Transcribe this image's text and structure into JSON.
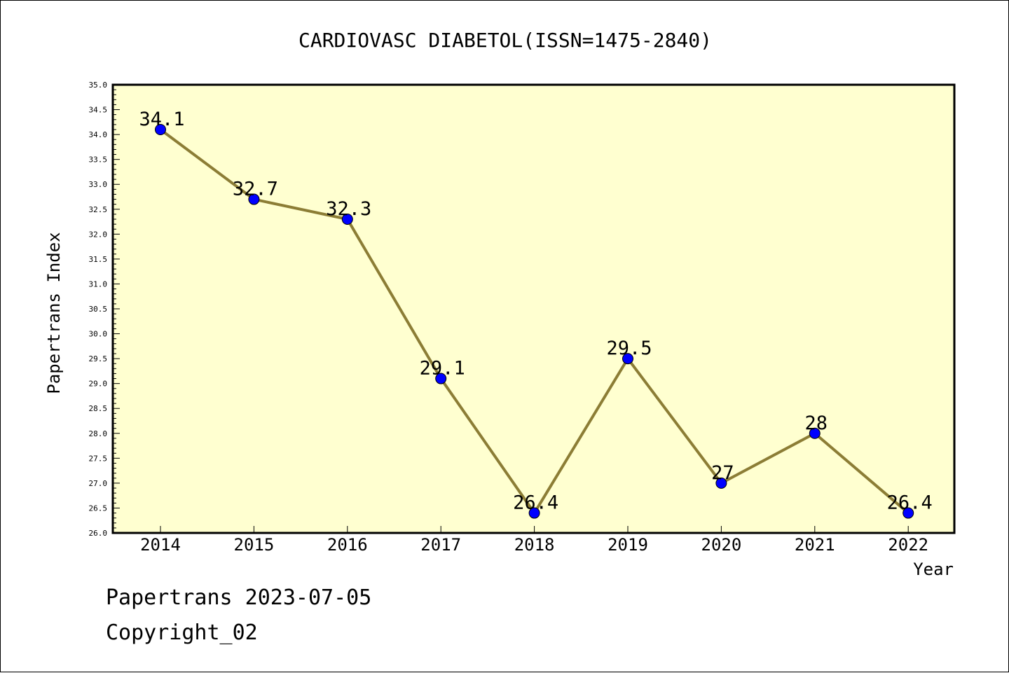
{
  "chart_data": {
    "type": "line",
    "title": "CARDIOVASC DIABETOL(ISSN=1475-2840)",
    "xlabel": "Year",
    "ylabel": "Papertrans Index",
    "categories": [
      "2014",
      "2015",
      "2016",
      "2017",
      "2018",
      "2019",
      "2020",
      "2021",
      "2022"
    ],
    "series": [
      {
        "values": [
          34.1,
          32.7,
          32.3,
          29.1,
          26.4,
          29.5,
          27,
          28,
          26.4
        ],
        "labels": [
          "34.1",
          "32.7",
          "32.3",
          "29.1",
          "26.4",
          "29.5",
          "27",
          "28",
          "26.4"
        ]
      }
    ],
    "ylim": [
      26.0,
      35.0
    ],
    "yticks": [
      "26.0",
      "26.5",
      "27.0",
      "27.5",
      "28.0",
      "28.5",
      "29.0",
      "29.5",
      "30.0",
      "30.5",
      "31.0",
      "31.5",
      "32.0",
      "32.5",
      "33.0",
      "33.5",
      "34.0",
      "34.5",
      "35.0"
    ],
    "grid": false,
    "colors": {
      "plot_background": "#ffffd0",
      "line": "#8c7d35",
      "marker": "#0000ff"
    }
  },
  "footer": {
    "line1": "Papertrans 2023-07-05",
    "line2": "Copyright_02"
  }
}
